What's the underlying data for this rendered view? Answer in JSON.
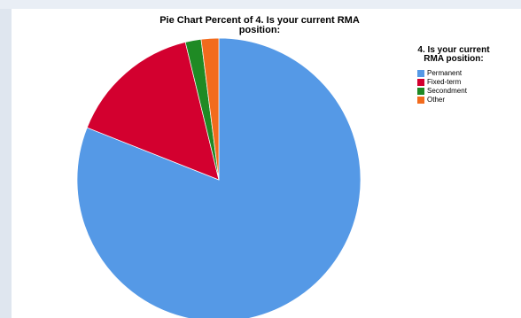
{
  "chart_data": {
    "type": "pie",
    "title": "Pie Chart Percent of 4. Is your current RMA position:",
    "legend_title": "4. Is your current RMA position:",
    "legend_position": "right",
    "slices": [
      {
        "label": "Permanent",
        "value": 81.0,
        "color": "#5599e6"
      },
      {
        "label": "Fixed-term",
        "value": 15.2,
        "color": "#d3002f"
      },
      {
        "label": "Secondment",
        "value": 1.8,
        "color": "#1f8a24"
      },
      {
        "label": "Other",
        "value": 2.0,
        "color": "#f26b1d"
      }
    ]
  }
}
